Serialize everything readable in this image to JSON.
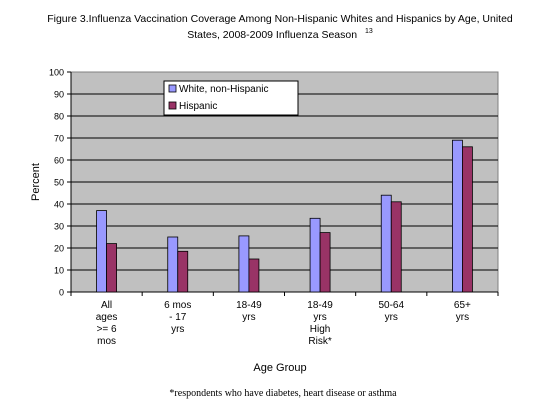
{
  "chart_data": {
    "type": "bar",
    "title_line1": "Figure 3.Influenza Vaccination Coverage Among Non-Hispanic Whites and Hispanics by Age, United",
    "title_line2": "States, 2008-2009 Influenza Season",
    "title_superscript": "13",
    "xlabel": "Age Group",
    "ylabel": "Percent",
    "ylim": [
      0,
      100
    ],
    "yticks": [
      0,
      10,
      20,
      30,
      40,
      50,
      60,
      70,
      80,
      90,
      100
    ],
    "grid": true,
    "legend_position": "top-left inside plot",
    "categories": [
      [
        "All",
        "ages",
        ">= 6",
        "mos"
      ],
      [
        "6 mos",
        "- 17",
        "yrs"
      ],
      [
        "18-49",
        "yrs"
      ],
      [
        "18-49",
        "yrs",
        "High",
        "Risk*"
      ],
      [
        "50-64",
        "yrs"
      ],
      [
        "65+",
        "yrs"
      ]
    ],
    "series": [
      {
        "name": "White, non-Hispanic",
        "color": "#9999ff",
        "values": [
          37,
          25,
          25.5,
          33.5,
          44,
          69
        ]
      },
      {
        "name": "Hispanic",
        "color": "#993366",
        "values": [
          22,
          18.5,
          15,
          27,
          41,
          66
        ]
      }
    ],
    "plot_background": "#c0c0c0",
    "footnote": "*respondents who have diabetes, heart disease or asthma"
  }
}
